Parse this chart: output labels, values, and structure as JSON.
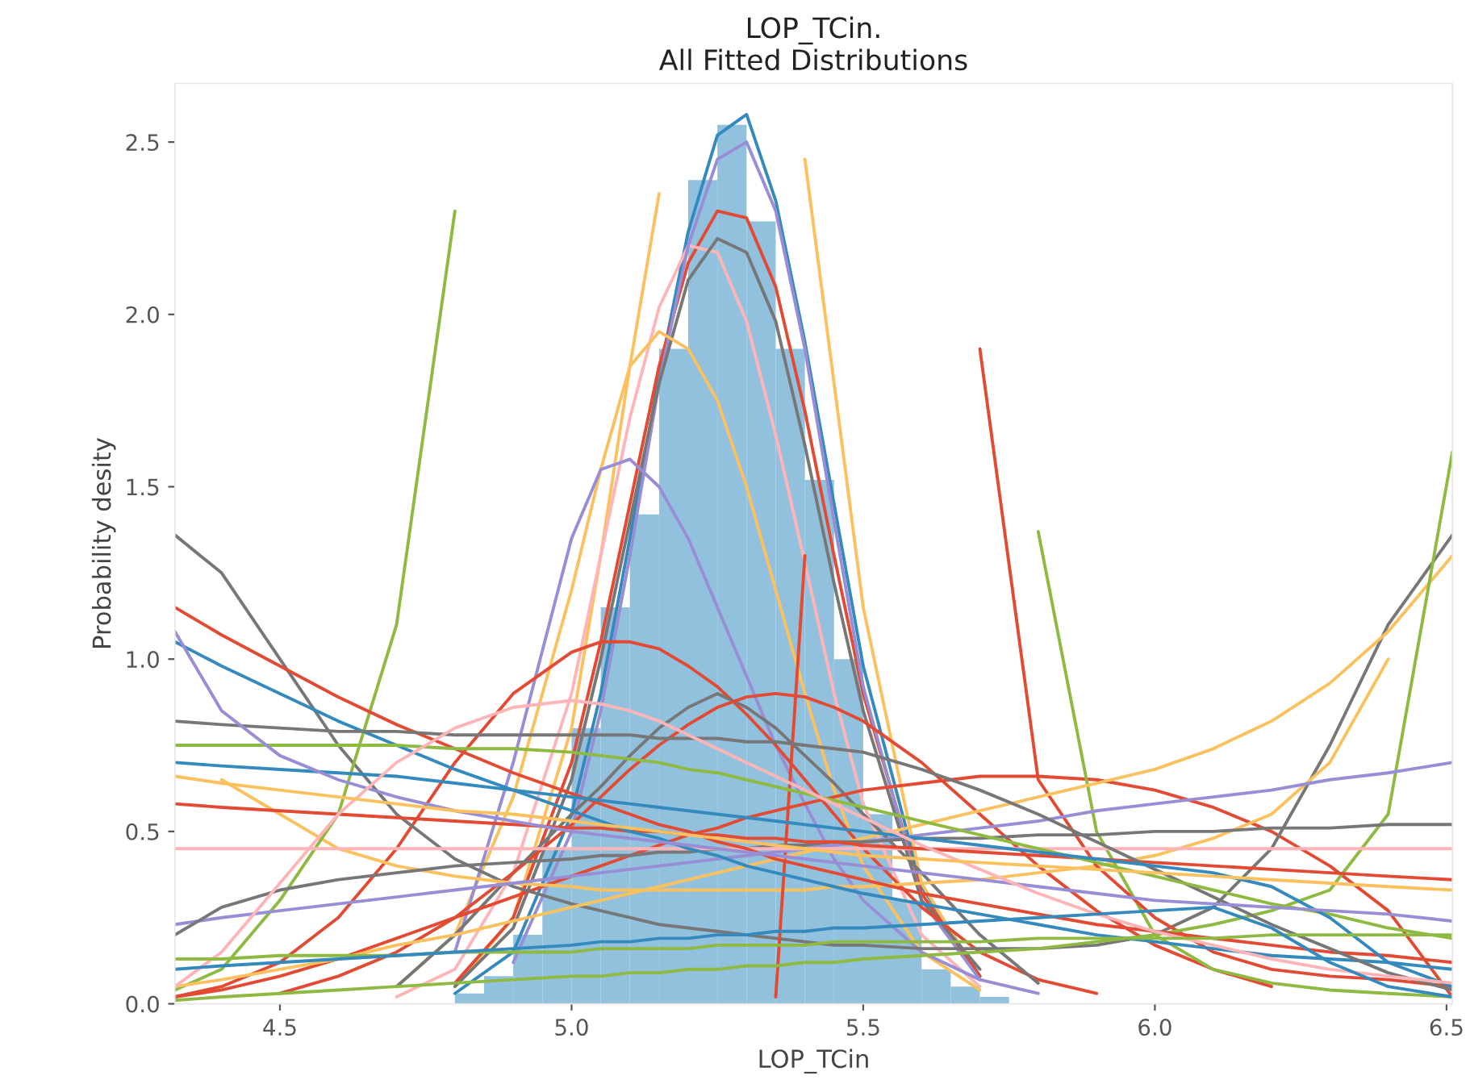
{
  "chart_data": {
    "type": "histogram",
    "title": "LOP_TCin.\nAll Fitted Distributions",
    "xlabel": "LOP_TCin",
    "ylabel": "Probability desity",
    "bins": [
      4.8,
      4.85,
      4.9,
      4.95,
      5.0,
      5.05,
      5.1,
      5.15,
      5.2,
      5.25,
      5.3,
      5.35,
      5.4,
      5.45,
      5.5,
      5.55,
      5.6,
      5.65,
      5.7,
      5.75
    ],
    "values": [
      0.03,
      0.08,
      0.2,
      0.45,
      0.8,
      1.15,
      1.42,
      1.9,
      2.39,
      2.55,
      2.27,
      1.9,
      1.52,
      1.0,
      0.55,
      0.3,
      0.1,
      0.05,
      0.02
    ],
    "color": "#92c1de",
    "xlim": [
      4.32,
      6.51
    ],
    "ylim": [
      0,
      2.67
    ],
    "xticks": [
      4.5,
      {
        "value": 5,
        "label": "5.0"
      },
      5.5,
      {
        "value": 6,
        "label": "6.0"
      },
      6.5
    ],
    "yticks": [
      {
        "value": 0,
        "label": "0.0"
      },
      0.5,
      {
        "value": 1,
        "label": "1.0"
      },
      1.5,
      {
        "value": 2,
        "label": "2.0"
      },
      2.5
    ],
    "grid": false,
    "legend": false,
    "x": [
      4.32,
      4.4,
      4.5,
      4.6,
      4.7,
      4.8,
      4.9,
      5.0,
      5.05,
      5.1,
      5.15,
      5.2,
      5.25,
      5.3,
      5.35,
      5.4,
      5.45,
      5.5,
      5.6,
      5.7,
      5.8,
      5.9,
      6.0,
      6.1,
      6.2,
      6.3,
      6.4,
      6.51
    ],
    "series": [
      {
        "type": "line",
        "color": "#348ABD",
        "values": [
          null,
          null,
          null,
          null,
          null,
          0.03,
          0.15,
          0.55,
          0.9,
          1.35,
          1.82,
          2.24,
          2.52,
          2.58,
          2.33,
          1.92,
          1.45,
          0.98,
          0.34,
          0.08,
          null,
          null,
          null,
          null,
          null,
          null,
          null,
          null
        ]
      },
      {
        "type": "line",
        "color": "#FBC15E",
        "values": [
          null,
          null,
          null,
          null,
          null,
          0.05,
          0.25,
          0.8,
          1.3,
          1.85,
          2.35,
          null,
          null,
          null,
          null,
          2.45,
          1.8,
          1.15,
          0.35,
          0.07,
          null,
          null,
          null,
          null,
          null,
          null,
          null,
          null
        ]
      },
      {
        "type": "line",
        "color": "#E24A33",
        "values": [
          null,
          null,
          null,
          null,
          null,
          0.06,
          0.25,
          0.7,
          1.05,
          1.45,
          1.85,
          2.15,
          2.3,
          2.28,
          2.08,
          1.72,
          1.3,
          0.9,
          0.32,
          0.08,
          null,
          null,
          null,
          null,
          null,
          null,
          null,
          null
        ]
      },
      {
        "type": "line",
        "color": "#FFB5B8",
        "values": [
          null,
          null,
          null,
          null,
          0.02,
          0.1,
          0.38,
          0.9,
          1.3,
          1.7,
          2.02,
          2.2,
          2.18,
          1.98,
          1.65,
          1.28,
          0.9,
          0.58,
          0.2,
          0.05,
          null,
          null,
          null,
          null,
          null,
          null,
          null,
          null
        ]
      },
      {
        "type": "line",
        "color": "#988ED5",
        "values": [
          null,
          null,
          null,
          null,
          null,
          null,
          0.12,
          0.5,
          0.85,
          1.3,
          1.8,
          2.2,
          2.45,
          2.5,
          2.3,
          1.9,
          1.4,
          0.92,
          0.3,
          0.07,
          null,
          null,
          null,
          null,
          null,
          null,
          null,
          null
        ]
      },
      {
        "type": "line",
        "color": "#777777",
        "values": [
          null,
          null,
          null,
          null,
          null,
          0.05,
          0.22,
          0.65,
          1.0,
          1.4,
          1.8,
          2.1,
          2.22,
          2.18,
          1.98,
          1.62,
          1.22,
          0.85,
          0.3,
          0.1,
          null,
          null,
          null,
          null,
          null,
          null,
          null,
          null
        ]
      },
      {
        "type": "line",
        "color": "#FBC15E",
        "values": [
          null,
          null,
          null,
          null,
          0.05,
          0.2,
          0.6,
          1.2,
          1.55,
          1.85,
          1.95,
          1.9,
          1.75,
          1.5,
          1.2,
          0.9,
          0.62,
          0.4,
          0.15,
          0.04,
          null,
          null,
          null,
          null,
          null,
          null,
          null,
          null
        ]
      },
      {
        "type": "line",
        "color": "#988ED5",
        "values": [
          null,
          null,
          null,
          null,
          null,
          0.15,
          0.7,
          1.35,
          1.55,
          1.58,
          1.5,
          1.35,
          1.15,
          0.95,
          0.75,
          0.58,
          0.42,
          0.3,
          0.15,
          0.07,
          0.03,
          null,
          null,
          null,
          null,
          null,
          null,
          null
        ]
      },
      {
        "type": "line",
        "color": "#E24A33",
        "values": [
          0.02,
          0.05,
          0.12,
          0.25,
          0.45,
          0.7,
          0.9,
          1.02,
          1.05,
          1.05,
          1.03,
          0.98,
          0.92,
          0.84,
          0.75,
          0.65,
          0.55,
          0.45,
          0.28,
          0.15,
          0.07,
          0.03,
          null,
          null,
          null,
          null,
          null,
          null
        ]
      },
      {
        "type": "line",
        "color": "#777777",
        "values": [
          null,
          null,
          null,
          null,
          0.05,
          0.2,
          0.38,
          0.55,
          0.63,
          0.72,
          0.8,
          0.86,
          0.9,
          0.86,
          0.8,
          0.72,
          0.64,
          0.55,
          0.38,
          0.2,
          0.06,
          null,
          null,
          null,
          null,
          null,
          null,
          null
        ]
      },
      {
        "type": "line",
        "color": "#E24A33",
        "values": [
          null,
          null,
          0.03,
          0.08,
          0.15,
          0.25,
          0.38,
          0.52,
          0.6,
          0.68,
          0.75,
          0.81,
          0.86,
          0.89,
          0.9,
          0.89,
          0.86,
          0.82,
          0.7,
          0.55,
          0.4,
          0.27,
          0.17,
          0.1,
          0.05,
          null,
          null,
          null
        ]
      },
      {
        "type": "line",
        "color": "#E24A33",
        "values": [
          0.02,
          0.04,
          0.08,
          0.13,
          0.19,
          0.25,
          0.31,
          0.37,
          0.4,
          0.43,
          0.46,
          0.49,
          0.51,
          0.54,
          0.56,
          0.58,
          0.6,
          0.62,
          0.64,
          0.66,
          0.66,
          0.65,
          0.62,
          0.57,
          0.5,
          0.4,
          0.27,
          0.02
        ]
      },
      {
        "type": "line",
        "color": "#777777",
        "values": [
          1.36,
          1.25,
          1.0,
          0.75,
          0.55,
          0.42,
          0.34,
          0.29,
          0.27,
          0.25,
          0.23,
          0.22,
          0.21,
          0.2,
          0.19,
          0.18,
          0.17,
          0.17,
          0.16,
          0.16,
          0.16,
          0.17,
          0.2,
          0.28,
          0.45,
          0.75,
          1.1,
          1.36
        ]
      },
      {
        "type": "line",
        "color": "#FBC15E",
        "values": [
          null,
          0.65,
          0.55,
          0.45,
          0.4,
          0.37,
          0.35,
          0.34,
          0.33,
          0.33,
          0.33,
          0.33,
          0.33,
          0.33,
          0.33,
          0.33,
          0.34,
          0.34,
          0.35,
          0.36,
          0.38,
          0.4,
          0.43,
          0.48,
          0.55,
          0.7,
          1.0,
          null
        ]
      },
      {
        "type": "line",
        "color": "#8EBA42",
        "values": [
          0.04,
          0.1,
          0.3,
          0.55,
          1.1,
          2.3,
          null,
          null,
          null,
          null,
          null,
          null,
          null,
          null,
          null,
          null,
          null,
          null,
          null,
          null,
          1.37,
          0.5,
          0.2,
          0.1,
          0.06,
          0.04,
          0.03,
          0.02
        ]
      },
      {
        "type": "line",
        "color": "#E24A33",
        "values": [
          null,
          null,
          null,
          null,
          null,
          null,
          null,
          null,
          null,
          null,
          null,
          null,
          null,
          null,
          0.02,
          1.3,
          null,
          null,
          null,
          1.9,
          0.65,
          0.4,
          0.25,
          0.15,
          0.1,
          0.08,
          0.07,
          0.05
        ]
      },
      {
        "type": "line",
        "color": "#FBC15E",
        "values": [
          0.05,
          0.07,
          0.1,
          0.13,
          0.17,
          0.2,
          0.24,
          0.28,
          0.3,
          0.32,
          0.34,
          0.36,
          0.38,
          0.4,
          0.42,
          0.44,
          0.46,
          0.48,
          0.52,
          0.56,
          0.6,
          0.64,
          0.68,
          0.74,
          0.82,
          0.93,
          1.08,
          1.3
        ]
      },
      {
        "type": "line",
        "color": "#8EBA42",
        "values": [
          0.01,
          0.02,
          0.03,
          0.04,
          0.05,
          0.06,
          0.07,
          0.08,
          0.08,
          0.09,
          0.09,
          0.1,
          0.1,
          0.11,
          0.11,
          0.12,
          0.12,
          0.13,
          0.14,
          0.15,
          0.16,
          0.18,
          0.2,
          0.23,
          0.27,
          0.33,
          0.55,
          1.6
        ]
      },
      {
        "type": "line",
        "color": "#988ED5",
        "values": [
          0.23,
          0.25,
          0.27,
          0.29,
          0.31,
          0.33,
          0.35,
          0.37,
          0.38,
          0.39,
          0.4,
          0.41,
          0.42,
          0.43,
          0.44,
          0.45,
          0.46,
          0.47,
          0.49,
          0.51,
          0.53,
          0.56,
          0.58,
          0.6,
          0.62,
          0.65,
          0.67,
          0.7
        ]
      },
      {
        "type": "line",
        "color": "#777777",
        "values": [
          0.2,
          0.28,
          0.33,
          0.36,
          0.38,
          0.4,
          0.41,
          0.42,
          0.43,
          0.43,
          0.44,
          0.44,
          0.45,
          0.45,
          0.46,
          0.46,
          0.47,
          0.47,
          0.48,
          0.48,
          0.49,
          0.49,
          0.5,
          0.5,
          0.51,
          0.51,
          0.52,
          0.52
        ]
      },
      {
        "type": "line",
        "color": "#FFB5B8",
        "values": [
          0.45,
          0.45,
          0.45,
          0.45,
          0.45,
          0.45,
          0.45,
          0.45,
          0.45,
          0.45,
          0.45,
          0.45,
          0.45,
          0.45,
          0.45,
          0.45,
          0.45,
          0.45,
          0.45,
          0.45,
          0.45,
          0.45,
          0.45,
          0.45,
          0.45,
          0.45,
          0.45,
          0.45
        ]
      },
      {
        "type": "line",
        "color": "#E24A33",
        "values": [
          0.58,
          0.57,
          0.56,
          0.55,
          0.54,
          0.53,
          0.52,
          0.51,
          0.51,
          0.5,
          0.5,
          0.49,
          0.49,
          0.48,
          0.48,
          0.47,
          0.47,
          0.46,
          0.45,
          0.44,
          0.43,
          0.42,
          0.41,
          0.4,
          0.39,
          0.38,
          0.37,
          0.36
        ]
      },
      {
        "type": "line",
        "color": "#348ABD",
        "values": [
          1.05,
          0.98,
          0.9,
          0.82,
          0.75,
          0.68,
          0.62,
          0.56,
          0.53,
          0.5,
          0.48,
          0.45,
          0.43,
          0.4,
          0.38,
          0.36,
          0.34,
          0.32,
          0.29,
          0.26,
          0.23,
          0.2,
          0.18,
          0.16,
          0.14,
          0.13,
          0.12,
          0.1
        ]
      },
      {
        "type": "line",
        "color": "#E24A33",
        "values": [
          1.15,
          1.07,
          0.98,
          0.89,
          0.81,
          0.74,
          0.67,
          0.61,
          0.58,
          0.55,
          0.52,
          0.5,
          0.47,
          0.45,
          0.42,
          0.4,
          0.38,
          0.36,
          0.32,
          0.29,
          0.26,
          0.23,
          0.21,
          0.19,
          0.17,
          0.15,
          0.14,
          0.12
        ]
      },
      {
        "type": "line",
        "color": "#777777",
        "values": [
          0.82,
          0.81,
          0.8,
          0.79,
          0.79,
          0.78,
          0.78,
          0.78,
          0.78,
          0.78,
          0.77,
          0.77,
          0.77,
          0.76,
          0.76,
          0.75,
          0.74,
          0.73,
          0.68,
          0.62,
          0.55,
          0.47,
          0.39,
          0.31,
          0.23,
          0.16,
          0.09,
          0.04
        ]
      },
      {
        "type": "line",
        "color": "#8EBA42",
        "values": [
          0.75,
          0.75,
          0.75,
          0.75,
          0.75,
          0.74,
          0.74,
          0.73,
          0.72,
          0.71,
          0.7,
          0.68,
          0.67,
          0.65,
          0.63,
          0.61,
          0.59,
          0.57,
          0.53,
          0.49,
          0.45,
          0.41,
          0.37,
          0.33,
          0.29,
          0.26,
          0.22,
          0.19
        ]
      },
      {
        "type": "line",
        "color": "#348ABD",
        "values": [
          0.7,
          0.69,
          0.68,
          0.67,
          0.66,
          0.64,
          0.62,
          0.6,
          0.59,
          0.58,
          0.57,
          0.56,
          0.55,
          0.54,
          0.53,
          0.52,
          0.51,
          0.5,
          0.48,
          0.46,
          0.44,
          0.42,
          0.4,
          0.38,
          0.34,
          0.25,
          0.12,
          0.05
        ]
      },
      {
        "type": "line",
        "color": "#988ED5",
        "values": [
          1.08,
          0.85,
          0.72,
          0.65,
          0.6,
          0.56,
          0.53,
          0.5,
          0.49,
          0.48,
          0.47,
          0.46,
          0.45,
          0.44,
          0.43,
          0.42,
          0.41,
          0.4,
          0.38,
          0.36,
          0.34,
          0.32,
          0.3,
          0.29,
          0.28,
          0.27,
          0.26,
          0.24
        ]
      },
      {
        "type": "line",
        "color": "#FFB5B8",
        "values": [
          0.05,
          0.15,
          0.35,
          0.55,
          0.7,
          0.8,
          0.86,
          0.88,
          0.87,
          0.85,
          0.82,
          0.78,
          0.74,
          0.7,
          0.66,
          0.62,
          0.58,
          0.54,
          0.46,
          0.39,
          0.32,
          0.26,
          0.21,
          0.17,
          0.13,
          0.1,
          0.08,
          0.06
        ]
      },
      {
        "type": "line",
        "color": "#FBC15E",
        "values": [
          0.66,
          0.64,
          0.62,
          0.6,
          0.58,
          0.56,
          0.55,
          0.53,
          0.52,
          0.51,
          0.5,
          0.49,
          0.48,
          0.47,
          0.46,
          0.45,
          0.44,
          0.43,
          0.42,
          0.41,
          0.4,
          0.39,
          0.38,
          0.37,
          0.36,
          0.35,
          0.34,
          0.33
        ]
      },
      {
        "type": "line",
        "color": "#8EBA42",
        "values": [
          0.13,
          0.13,
          0.14,
          0.14,
          0.14,
          0.15,
          0.15,
          0.15,
          0.16,
          0.16,
          0.16,
          0.16,
          0.17,
          0.17,
          0.17,
          0.17,
          0.18,
          0.18,
          0.18,
          0.18,
          0.19,
          0.19,
          0.19,
          0.19,
          0.2,
          0.2,
          0.2,
          0.2
        ]
      },
      {
        "type": "line",
        "color": "#348ABD",
        "values": [
          0.1,
          0.11,
          0.12,
          0.13,
          0.14,
          0.15,
          0.16,
          0.17,
          0.18,
          0.18,
          0.19,
          0.19,
          0.2,
          0.2,
          0.21,
          0.21,
          0.22,
          0.22,
          0.23,
          0.24,
          0.25,
          0.26,
          0.27,
          0.28,
          0.22,
          0.12,
          0.05,
          0.02
        ]
      }
    ]
  }
}
